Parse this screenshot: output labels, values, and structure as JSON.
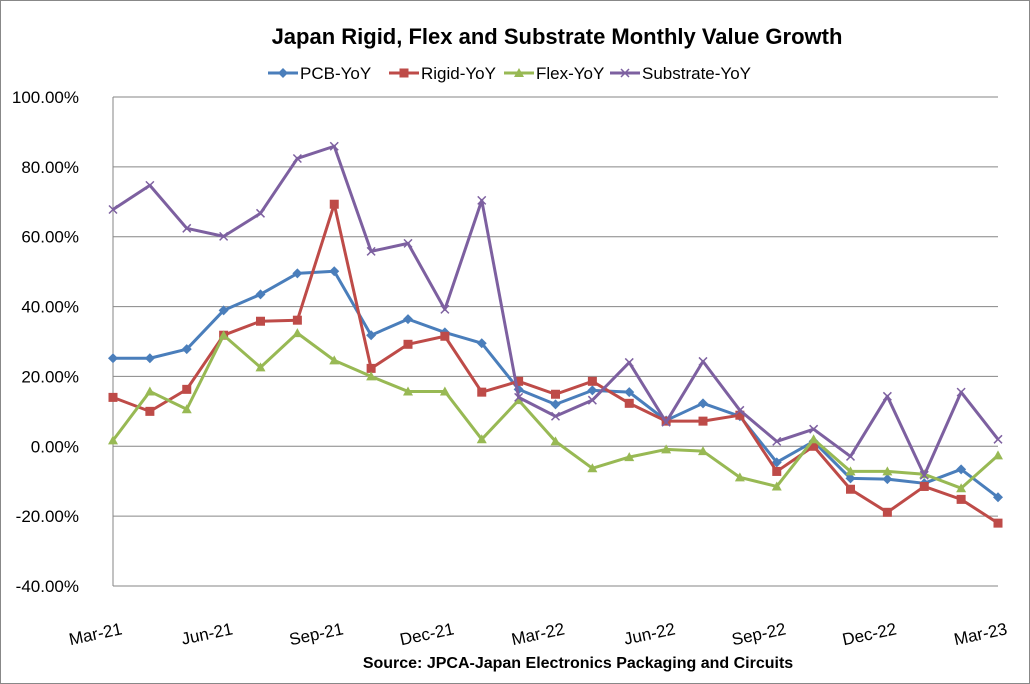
{
  "chart_data": {
    "type": "line",
    "title": "Japan Rigid, Flex and Substrate Monthly Value Growth",
    "source": "Source: JPCA-Japan Electronics Packaging and Circuits",
    "legend_position": "top",
    "grid": true,
    "ylim": [
      -40,
      100
    ],
    "y_ticks": [
      "100.00%",
      "80.00%",
      "60.00%",
      "40.00%",
      "20.00%",
      "0.00%",
      "-20.00%",
      "-40.00%"
    ],
    "y_tick_values": [
      100,
      80,
      60,
      40,
      20,
      0,
      -20,
      -40
    ],
    "x": [
      "Mar-21",
      "Apr-21",
      "May-21",
      "Jun-21",
      "Jul-21",
      "Aug-21",
      "Sep-21",
      "Oct-21",
      "Nov-21",
      "Dec-21",
      "Jan-22",
      "Feb-22",
      "Mar-22",
      "Apr-22",
      "May-22",
      "Jun-22",
      "Jul-22",
      "Aug-22",
      "Sep-22",
      "Oct-22",
      "Nov-22",
      "Dec-22",
      "Jan-23",
      "Feb-23",
      "Mar-23"
    ],
    "x_tick_labels": [
      "Mar-21",
      "Jun-21",
      "Sep-21",
      "Dec-21",
      "Mar-22",
      "Jun-22",
      "Sep-22",
      "Dec-22",
      "Mar-23"
    ],
    "series": [
      {
        "name": "PCB-YoY",
        "color": "#4a7ebb",
        "marker": "diamond",
        "values": [
          25.2,
          25.2,
          27.8,
          38.9,
          43.5,
          49.5,
          50.1,
          31.8,
          36.4,
          32.6,
          29.5,
          16.3,
          12.0,
          16.0,
          15.5,
          7.4,
          12.3,
          8.6,
          -4.6,
          1.4,
          -9.2,
          -9.4,
          -10.6,
          -6.6,
          -14.6
        ]
      },
      {
        "name": "Rigid-YoY",
        "color": "#be4b48",
        "marker": "square",
        "values": [
          14.0,
          10.0,
          16.3,
          31.8,
          35.8,
          36.1,
          69.3,
          22.3,
          29.2,
          31.5,
          15.5,
          18.6,
          14.9,
          18.6,
          12.3,
          7.2,
          7.2,
          8.9,
          -7.2,
          0.0,
          -12.3,
          -18.9,
          -11.5,
          -15.2,
          -22.0
        ]
      },
      {
        "name": "Flex-YoY",
        "color": "#98b954",
        "marker": "triangle",
        "values": [
          1.7,
          15.7,
          10.6,
          31.8,
          22.6,
          32.4,
          24.6,
          20.0,
          15.7,
          15.7,
          2.0,
          13.2,
          1.4,
          -6.3,
          -3.1,
          -0.9,
          -1.4,
          -8.9,
          -11.5,
          2.0,
          -7.2,
          -7.2,
          -8.0,
          -12.0,
          -2.6
        ]
      },
      {
        "name": "Substrate-YoY",
        "color": "#7d60a0",
        "marker": "x",
        "values": [
          67.8,
          74.7,
          62.4,
          60.1,
          66.7,
          82.4,
          85.9,
          55.8,
          58.1,
          39.2,
          70.4,
          14.0,
          8.6,
          13.2,
          24.0,
          6.9,
          24.3,
          10.3,
          1.4,
          4.9,
          -2.9,
          14.3,
          -8.3,
          15.5,
          2.0
        ]
      }
    ]
  }
}
